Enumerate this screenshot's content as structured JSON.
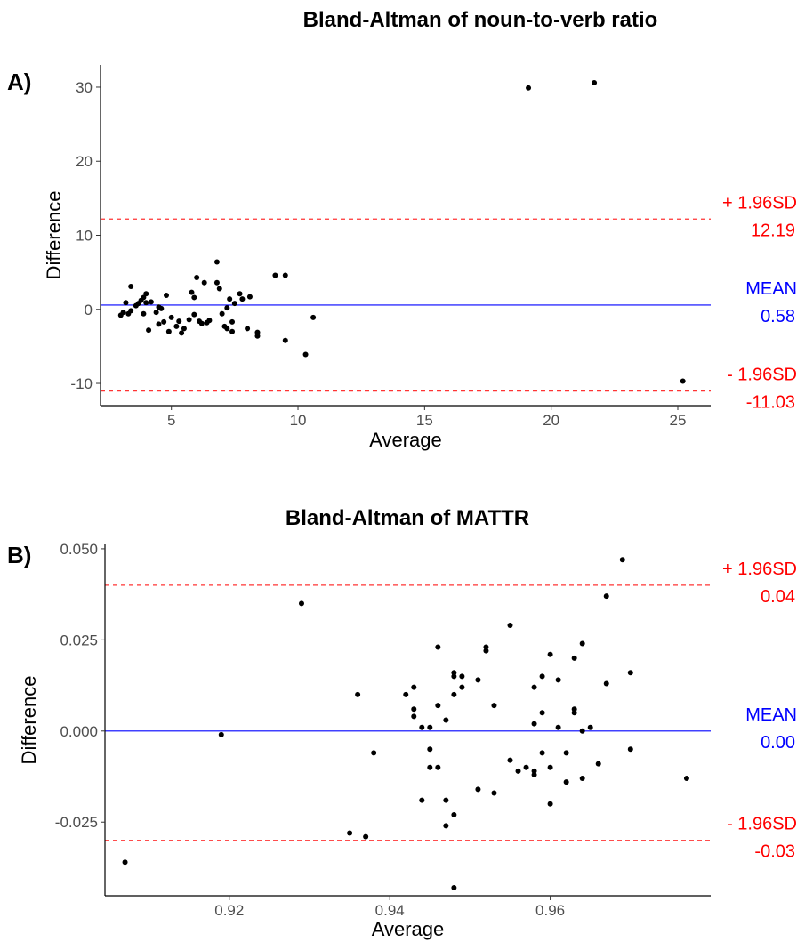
{
  "chart_data": [
    {
      "type": "scatter",
      "panel_label": "A)",
      "title": "Bland-Altman of noun-to-verb ratio",
      "xlabel": "Average",
      "ylabel": "Difference",
      "xlim": [
        2.2,
        26.3
      ],
      "ylim": [
        -13,
        33
      ],
      "xticks": [
        5,
        10,
        15,
        20,
        25
      ],
      "yticks": [
        -10,
        0,
        10,
        20,
        30
      ],
      "xtick_labels": [
        "5",
        "10",
        "15",
        "20",
        "25"
      ],
      "ytick_labels": [
        "-10",
        "0",
        "10",
        "20",
        "30"
      ],
      "reference_lines": [
        {
          "kind": "upper",
          "value": 12.19,
          "label": "+ 1.96SD",
          "value_label": "12.19",
          "color": "#ff0000",
          "style": "dashed"
        },
        {
          "kind": "mean",
          "value": 0.58,
          "label": "MEAN",
          "value_label": "0.58",
          "color": "#0000ff",
          "style": "solid"
        },
        {
          "kind": "lower",
          "value": -11.03,
          "label": "- 1.96SD",
          "value_label": "-11.03",
          "color": "#ff0000",
          "style": "dashed"
        }
      ],
      "grid": false,
      "points": [
        [
          3.0,
          -0.8
        ],
        [
          3.1,
          -0.4
        ],
        [
          3.2,
          0.9
        ],
        [
          3.3,
          -0.6
        ],
        [
          3.4,
          3.1
        ],
        [
          3.4,
          -0.2
        ],
        [
          3.6,
          0.5
        ],
        [
          3.7,
          0.8
        ],
        [
          3.8,
          1.2
        ],
        [
          3.9,
          -0.6
        ],
        [
          3.9,
          1.6
        ],
        [
          4.0,
          2.1
        ],
        [
          4.0,
          0.9
        ],
        [
          4.1,
          -2.8
        ],
        [
          4.2,
          1.0
        ],
        [
          4.4,
          -0.4
        ],
        [
          4.5,
          0.3
        ],
        [
          4.5,
          -2.0
        ],
        [
          4.6,
          0.1
        ],
        [
          4.7,
          -1.7
        ],
        [
          4.8,
          1.9
        ],
        [
          4.9,
          -3.0
        ],
        [
          5.0,
          -1.1
        ],
        [
          5.2,
          -2.3
        ],
        [
          5.3,
          -1.6
        ],
        [
          5.4,
          -3.2
        ],
        [
          5.5,
          -2.6
        ],
        [
          5.7,
          -1.4
        ],
        [
          5.8,
          2.3
        ],
        [
          5.9,
          -0.7
        ],
        [
          5.9,
          1.6
        ],
        [
          6.0,
          4.3
        ],
        [
          6.1,
          -1.6
        ],
        [
          6.2,
          -1.9
        ],
        [
          6.3,
          3.6
        ],
        [
          6.4,
          -1.8
        ],
        [
          6.5,
          -1.5
        ],
        [
          6.8,
          3.6
        ],
        [
          6.8,
          6.4
        ],
        [
          6.9,
          2.8
        ],
        [
          7.0,
          -0.6
        ],
        [
          7.1,
          -2.3
        ],
        [
          7.2,
          0.2
        ],
        [
          7.2,
          -2.6
        ],
        [
          7.3,
          1.4
        ],
        [
          7.4,
          -1.7
        ],
        [
          7.4,
          -3.0
        ],
        [
          7.5,
          0.8
        ],
        [
          7.7,
          2.1
        ],
        [
          7.8,
          1.4
        ],
        [
          8.0,
          -2.6
        ],
        [
          8.1,
          1.7
        ],
        [
          8.4,
          -3.6
        ],
        [
          8.4,
          -3.1
        ],
        [
          9.1,
          4.6
        ],
        [
          9.5,
          4.6
        ],
        [
          9.5,
          -4.2
        ],
        [
          10.3,
          -6.1
        ],
        [
          10.6,
          -1.1
        ],
        [
          19.1,
          29.9
        ],
        [
          21.7,
          30.6
        ],
        [
          25.2,
          -9.7
        ]
      ]
    },
    {
      "type": "scatter",
      "panel_label": "B)",
      "title": "Bland-Altman of MATTR",
      "xlabel": "Average",
      "ylabel": "Difference",
      "xlim": [
        0.9045,
        0.98
      ],
      "ylim": [
        -0.0452,
        0.0512
      ],
      "xticks": [
        0.92,
        0.94,
        0.96
      ],
      "yticks": [
        -0.025,
        0.0,
        0.025,
        0.05
      ],
      "xtick_labels": [
        "0.92",
        "0.94",
        "0.96"
      ],
      "ytick_labels": [
        "-0.025",
        "0.000",
        "0.025",
        "0.050"
      ],
      "reference_lines": [
        {
          "kind": "upper",
          "value": 0.04,
          "label": "+ 1.96SD",
          "value_label": "0.04",
          "color": "#ff0000",
          "style": "dashed"
        },
        {
          "kind": "mean",
          "value": 0.0,
          "label": "MEAN",
          "value_label": "0.00",
          "color": "#0000ff",
          "style": "solid"
        },
        {
          "kind": "lower",
          "value": -0.03,
          "label": "- 1.96SD",
          "value_label": "-0.03",
          "color": "#ff0000",
          "style": "dashed"
        }
      ],
      "grid": false,
      "points": [
        [
          0.907,
          -0.036
        ],
        [
          0.919,
          -0.001
        ],
        [
          0.929,
          0.035
        ],
        [
          0.935,
          -0.028
        ],
        [
          0.936,
          0.01
        ],
        [
          0.937,
          -0.029
        ],
        [
          0.938,
          -0.006
        ],
        [
          0.942,
          0.01
        ],
        [
          0.943,
          0.012
        ],
        [
          0.943,
          0.006
        ],
        [
          0.943,
          0.004
        ],
        [
          0.944,
          -0.019
        ],
        [
          0.944,
          0.001
        ],
        [
          0.945,
          -0.005
        ],
        [
          0.945,
          0.001
        ],
        [
          0.945,
          -0.01
        ],
        [
          0.946,
          -0.01
        ],
        [
          0.946,
          0.023
        ],
        [
          0.946,
          0.007
        ],
        [
          0.947,
          0.003
        ],
        [
          0.947,
          -0.026
        ],
        [
          0.947,
          -0.019
        ],
        [
          0.948,
          0.016
        ],
        [
          0.948,
          0.01
        ],
        [
          0.948,
          -0.023
        ],
        [
          0.948,
          -0.043
        ],
        [
          0.948,
          0.015
        ],
        [
          0.949,
          0.015
        ],
        [
          0.949,
          0.012
        ],
        [
          0.951,
          0.014
        ],
        [
          0.951,
          -0.016
        ],
        [
          0.952,
          0.023
        ],
        [
          0.952,
          0.022
        ],
        [
          0.953,
          0.007
        ],
        [
          0.953,
          -0.017
        ],
        [
          0.955,
          0.029
        ],
        [
          0.955,
          -0.008
        ],
        [
          0.956,
          -0.011
        ],
        [
          0.957,
          -0.01
        ],
        [
          0.958,
          0.012
        ],
        [
          0.958,
          0.002
        ],
        [
          0.958,
          -0.011
        ],
        [
          0.958,
          -0.012
        ],
        [
          0.959,
          0.015
        ],
        [
          0.959,
          0.005
        ],
        [
          0.959,
          -0.006
        ],
        [
          0.96,
          0.021
        ],
        [
          0.96,
          -0.01
        ],
        [
          0.96,
          -0.02
        ],
        [
          0.961,
          0.001
        ],
        [
          0.961,
          0.014
        ],
        [
          0.962,
          -0.006
        ],
        [
          0.962,
          -0.014
        ],
        [
          0.963,
          0.005
        ],
        [
          0.963,
          0.02
        ],
        [
          0.963,
          0.006
        ],
        [
          0.964,
          0.024
        ],
        [
          0.964,
          0.0
        ],
        [
          0.964,
          -0.013
        ],
        [
          0.965,
          0.001
        ],
        [
          0.966,
          -0.009
        ],
        [
          0.967,
          0.037
        ],
        [
          0.967,
          0.013
        ],
        [
          0.969,
          0.047
        ],
        [
          0.97,
          0.016
        ],
        [
          0.97,
          -0.005
        ],
        [
          0.977,
          -0.013
        ]
      ]
    }
  ]
}
